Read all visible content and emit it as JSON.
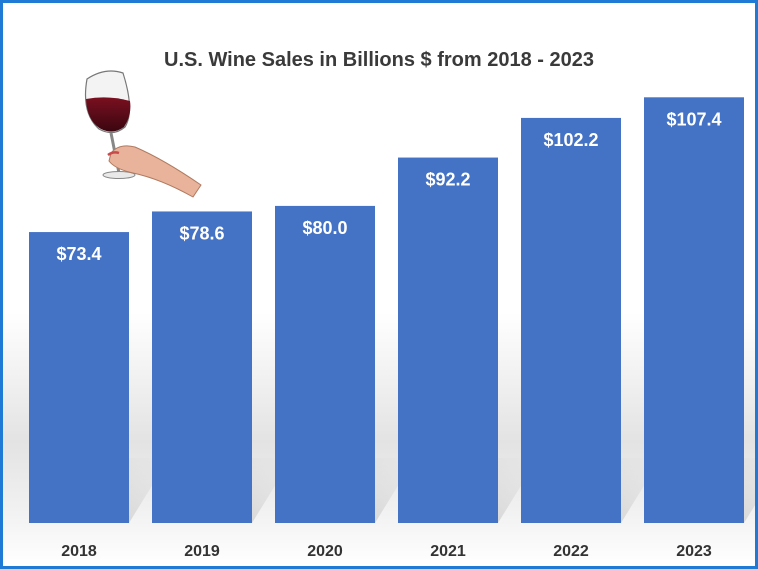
{
  "chart_data": {
    "type": "bar",
    "title": "U.S. Wine Sales in Billions $ from 2018 - 2023",
    "categories": [
      "2018",
      "2019",
      "2020",
      "2021",
      "2022",
      "2023"
    ],
    "values": [
      73.4,
      78.6,
      80.0,
      92.2,
      102.2,
      107.4
    ],
    "data_labels": [
      "$73.4",
      "$78.6",
      "$80.0",
      "$92.2",
      "$102.2",
      "$107.4"
    ],
    "xlabel": "",
    "ylabel": "",
    "ylim": [
      0,
      110
    ],
    "grid": false,
    "bar_color": "#4472c4",
    "frame_color": "#1f7ad6"
  },
  "decoration": {
    "image": "wine-glass-in-hand"
  }
}
